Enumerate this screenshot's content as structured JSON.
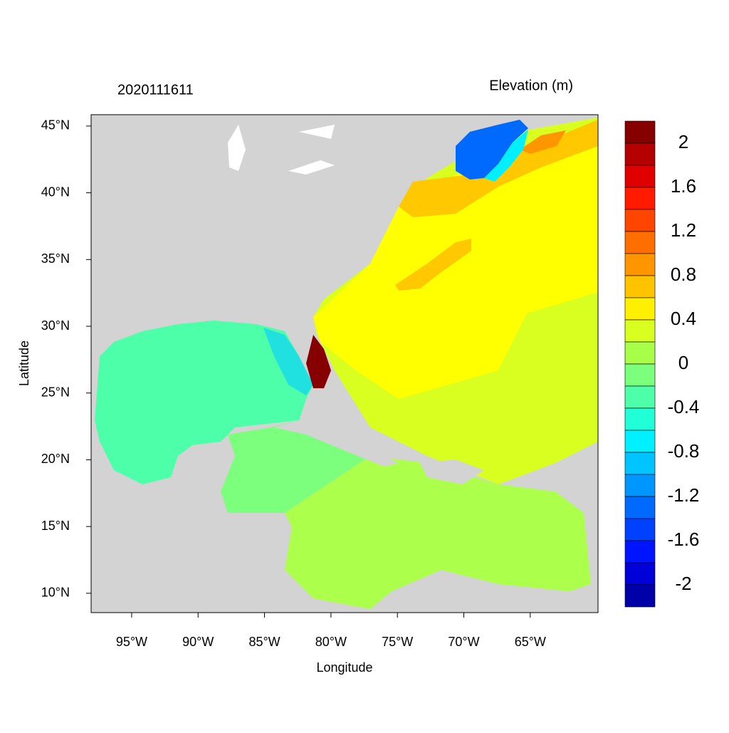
{
  "chart_data": {
    "type": "map",
    "title": "2020111611",
    "subtitle": "Elevation (m)",
    "xlabel": "Longitude",
    "ylabel": "Latitude",
    "xlim": [
      -98.05,
      -59.9
    ],
    "ylim": [
      8.55,
      45.85
    ],
    "xticks": [
      {
        "value": -95,
        "label": "95°W"
      },
      {
        "value": -90,
        "label": "90°W"
      },
      {
        "value": -85,
        "label": "85°W"
      },
      {
        "value": -80,
        "label": "80°W"
      },
      {
        "value": -75,
        "label": "75°W"
      },
      {
        "value": -70,
        "label": "70°W"
      },
      {
        "value": -65,
        "label": "65°W"
      }
    ],
    "yticks": [
      {
        "value": 10,
        "label": "10°N"
      },
      {
        "value": 15,
        "label": "15°N"
      },
      {
        "value": 20,
        "label": "20°N"
      },
      {
        "value": 25,
        "label": "25°N"
      },
      {
        "value": 30,
        "label": "30°N"
      },
      {
        "value": 35,
        "label": "35°N"
      },
      {
        "value": 40,
        "label": "40°N"
      },
      {
        "value": 45,
        "label": "45°N"
      }
    ],
    "colorbar": {
      "lim": [
        -2.2,
        2.2
      ],
      "ticks": [
        2,
        1.6,
        1.2,
        0.8,
        0.4,
        0,
        -0.4,
        -0.8,
        -1.2,
        -1.6,
        -2
      ],
      "colors": [
        "#870000",
        "#b40000",
        "#e00000",
        "#ff1a00",
        "#ff4500",
        "#ff6e00",
        "#ff9600",
        "#ffc300",
        "#ffef00",
        "#d8ff20",
        "#a8ff48",
        "#7cff7c",
        "#4dffa8",
        "#20ffd8",
        "#00f0ff",
        "#00c4ff",
        "#0096ff",
        "#006aff",
        "#0040ff",
        "#0014ff",
        "#0000d8",
        "#0000a8"
      ]
    }
  }
}
